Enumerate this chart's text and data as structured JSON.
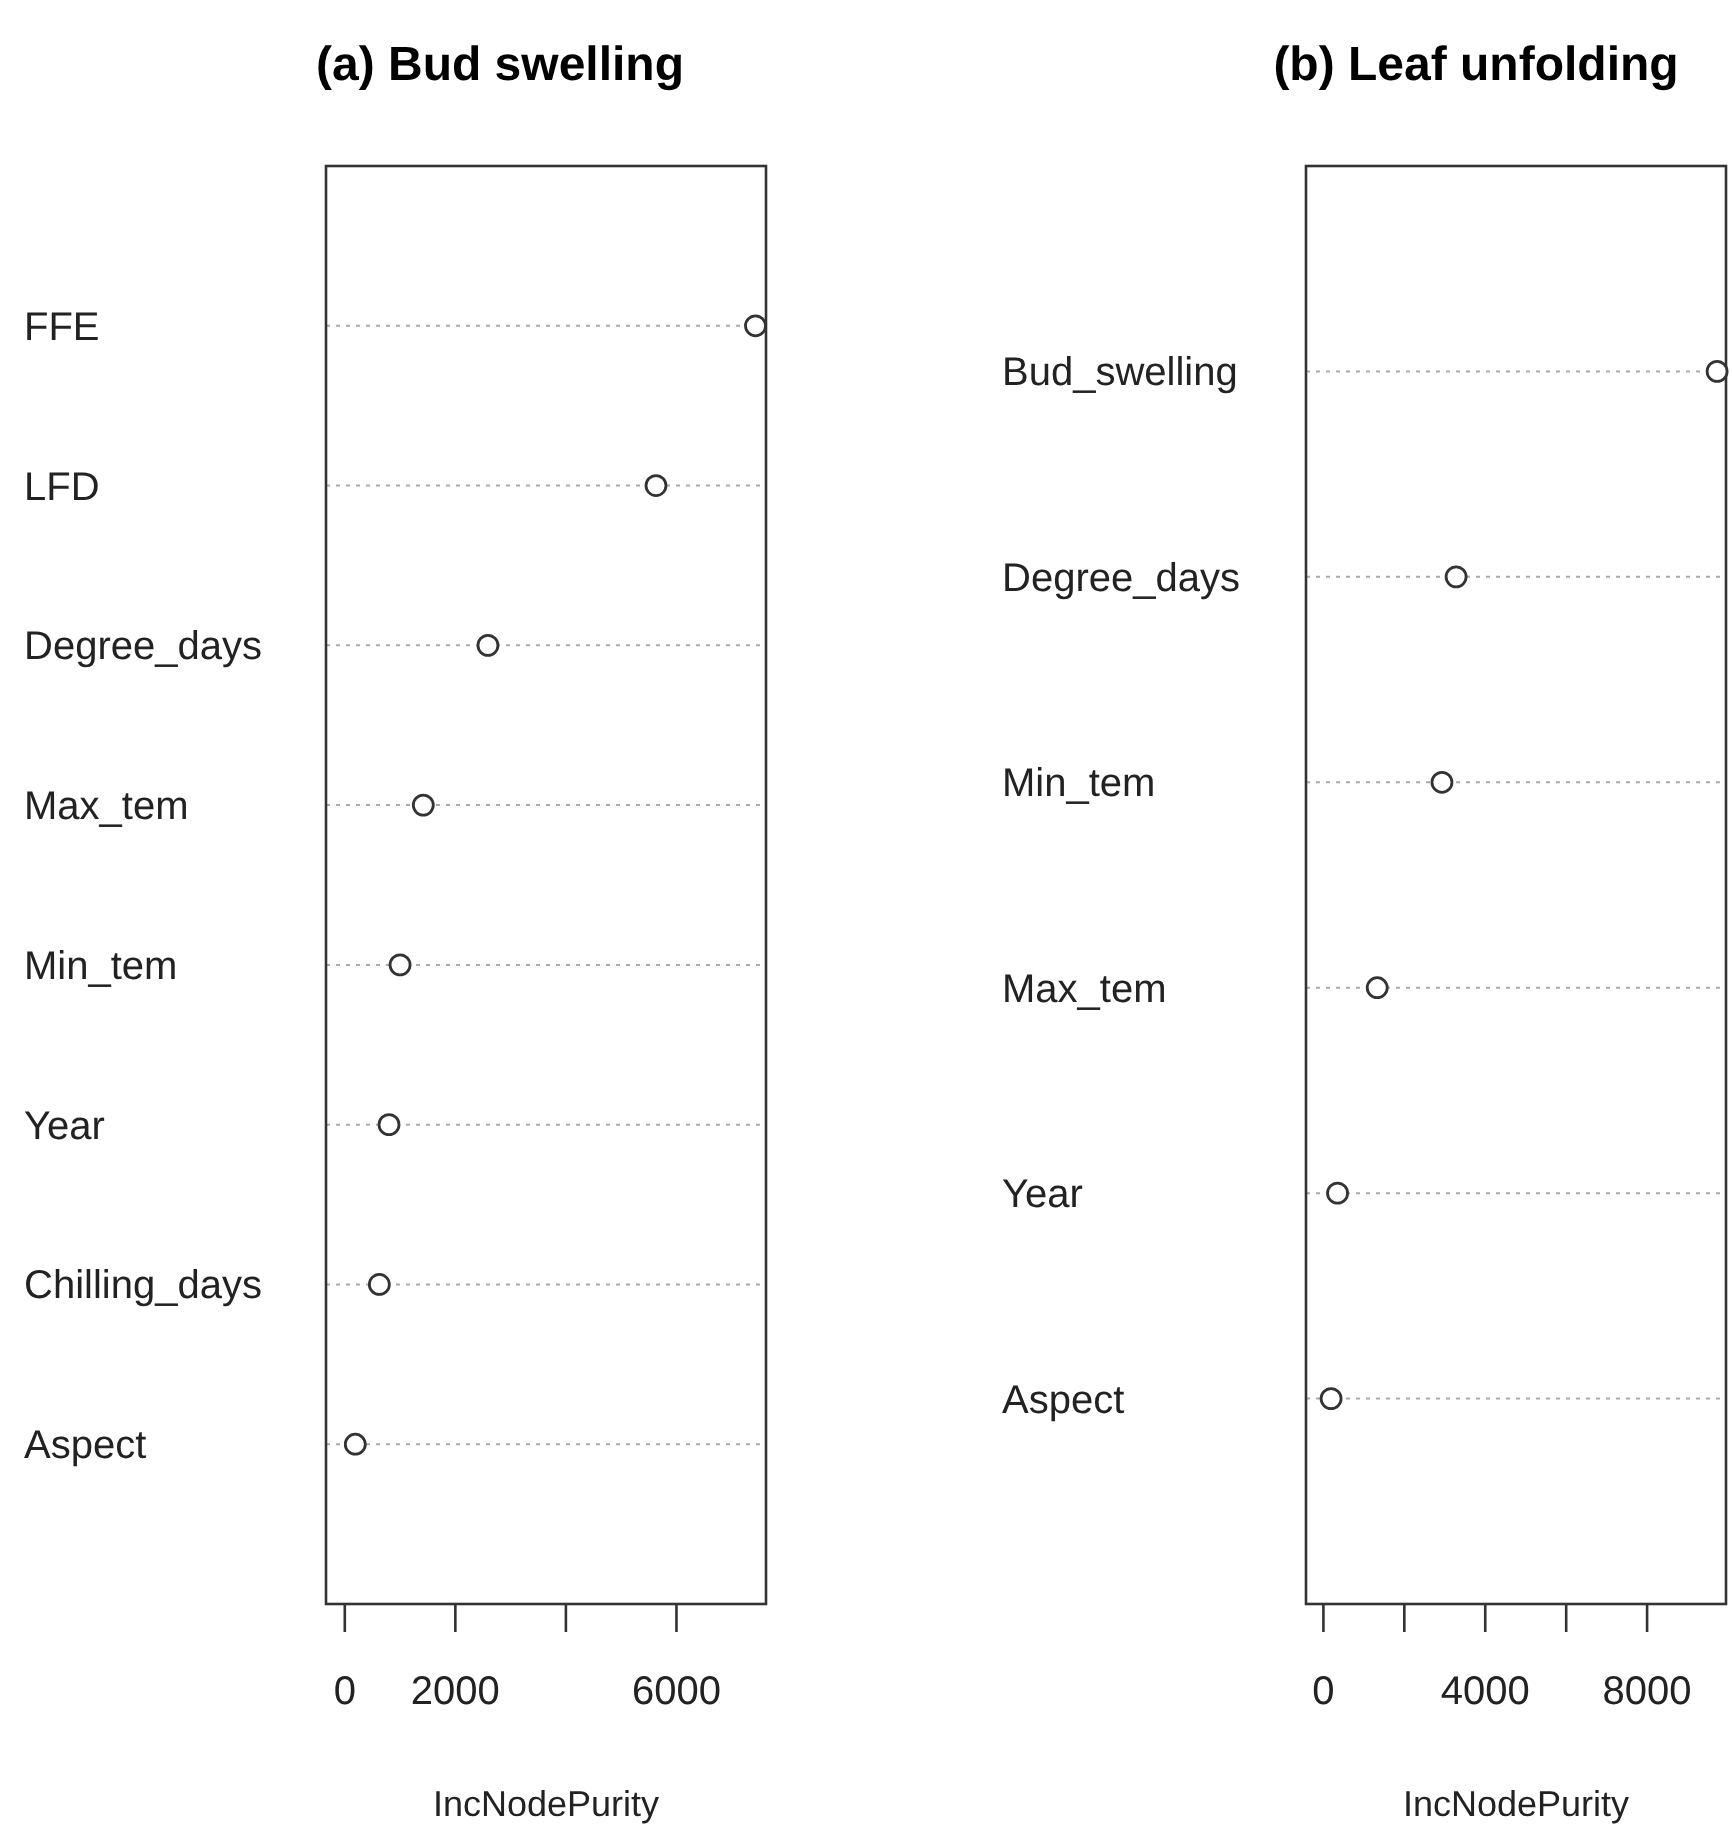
{
  "chart_data": [
    {
      "type": "scatter",
      "orientation": "horizontal",
      "title": "(a) Bud  swelling",
      "xlabel": "IncNodePurity",
      "categories": [
        "FFE",
        "LFD",
        "Degree_days",
        "Max_tem",
        "Min_tem",
        "Year",
        "Chilling_days",
        "Aspect"
      ],
      "values": [
        7430,
        5630,
        2590,
        1420,
        1000,
        800,
        625,
        190
      ],
      "color": "#333333",
      "marker": "circle",
      "grid": "y",
      "xlim": [
        -340,
        7620
      ],
      "xticks": [
        0,
        2000,
        {
          "value": 4000,
          "label": null
        },
        6000
      ]
    },
    {
      "type": "scatter",
      "orientation": "horizontal",
      "title": "(b) Leaf  unfolding",
      "xlabel": "IncNodePurity",
      "categories": [
        "Bud_swelling",
        "Degree_days",
        "Min_tem",
        "Max_tem",
        "Year",
        "Aspect"
      ],
      "values": [
        9730,
        3280,
        2930,
        1330,
        350,
        190
      ],
      "color": "#333333",
      "marker": "circle",
      "grid": "y",
      "xlim": [
        -430,
        9950
      ],
      "xticks": [
        0,
        {
          "value": 2000,
          "label": null
        },
        4000,
        {
          "value": 6000,
          "label": null
        },
        8000
      ]
    }
  ]
}
